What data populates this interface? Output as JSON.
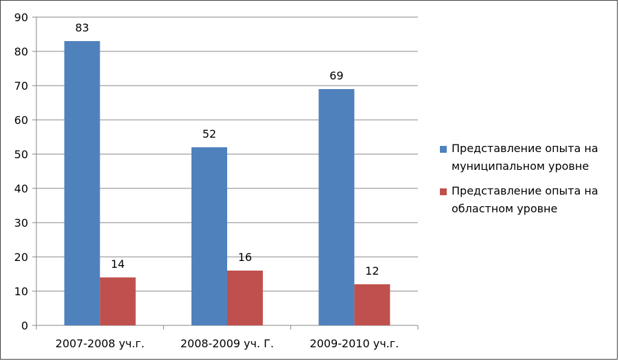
{
  "chart_data": {
    "type": "bar",
    "title": "",
    "xlabel": "",
    "ylabel": "",
    "ylim": [
      0,
      90
    ],
    "yticks": [
      0,
      10,
      20,
      30,
      40,
      50,
      60,
      70,
      80,
      90
    ],
    "grid": true,
    "legend_position": "right",
    "categories": [
      "2007-2008 уч.г.",
      "2008-2009 уч. Г.",
      "2009-2010 уч.г."
    ],
    "series": [
      {
        "name": "Представление опыта на муниципальном уровне",
        "values": [
          83,
          52,
          69
        ],
        "color": "#4F81BD"
      },
      {
        "name": "Представление опыта на областном уровне",
        "values": [
          14,
          16,
          12
        ],
        "color": "#C0504D"
      }
    ],
    "data_labels": true
  }
}
